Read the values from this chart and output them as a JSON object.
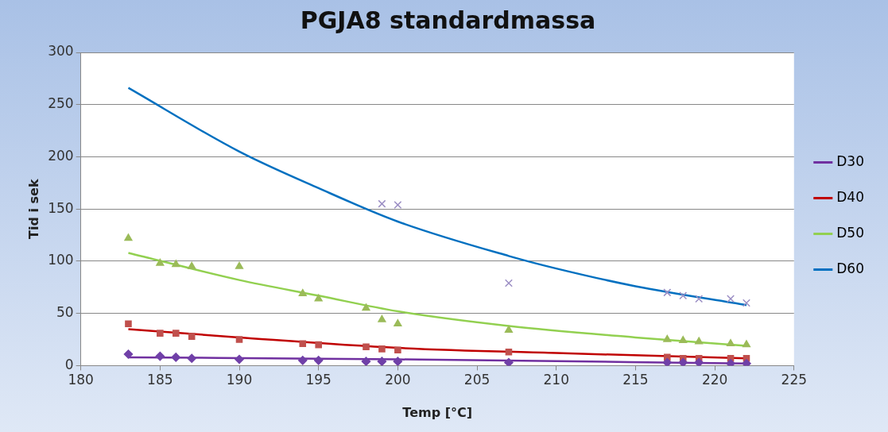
{
  "chart_data": {
    "type": "scatter",
    "title": "PGJA8 standardmassa",
    "xlabel": "Temp [°C]",
    "ylabel": "Tid i sek",
    "x": [
      183,
      185,
      186,
      187,
      190,
      194,
      195,
      198,
      199,
      200,
      207,
      217,
      218,
      219,
      221,
      222
    ],
    "xlim": [
      180,
      225
    ],
    "xticks": [
      180,
      185,
      190,
      195,
      200,
      205,
      210,
      215,
      220,
      225
    ],
    "ylim": [
      0,
      300
    ],
    "yticks": [
      0,
      50,
      100,
      150,
      200,
      250,
      300
    ],
    "grid": "y",
    "legend": "right",
    "series": [
      {
        "marker": "diamond",
        "color": "#7040a8",
        "values": [
          11,
          9,
          8,
          7,
          6,
          5,
          5,
          4,
          4,
          4,
          3,
          3,
          3,
          3,
          2,
          2
        ]
      },
      {
        "marker": "square",
        "color": "#c0504d",
        "values": [
          40,
          31,
          31,
          28,
          25,
          21,
          20,
          18,
          16,
          15,
          13,
          8,
          7,
          7,
          7,
          7
        ]
      },
      {
        "marker": "triangle",
        "color": "#9bbb59",
        "values": [
          122,
          98,
          97,
          95,
          95,
          69,
          64,
          55,
          44,
          40,
          34,
          25,
          24,
          23,
          21,
          20
        ]
      },
      {
        "marker": "cross",
        "color": "#9b8ec4",
        "values": [
          null,
          null,
          null,
          null,
          null,
          null,
          null,
          null,
          155,
          154,
          79,
          70,
          67,
          64,
          64,
          60
        ]
      },
      {
        "type": "line",
        "name": "D30",
        "marker": "none",
        "color": "#7030a0",
        "x": [
          183,
          200,
          222
        ],
        "values": [
          8,
          6,
          2
        ]
      },
      {
        "type": "line",
        "name": "D40",
        "marker": "none",
        "color": "#c00000",
        "x": [
          183,
          190,
          200,
          210,
          222
        ],
        "values": [
          35,
          27,
          17,
          12,
          7
        ]
      },
      {
        "type": "line",
        "name": "D50",
        "marker": "none",
        "color": "#92d050",
        "x": [
          183,
          190,
          195,
          200,
          207,
          215,
          222
        ],
        "values": [
          108,
          82,
          67,
          52,
          38,
          27,
          19
        ]
      },
      {
        "type": "line",
        "name": "D60",
        "marker": "none",
        "color": "#0070c0",
        "x": [
          183,
          190,
          195,
          200,
          207,
          210,
          215,
          222
        ],
        "values": [
          266,
          205,
          170,
          138,
          105,
          93,
          76,
          58
        ]
      }
    ]
  }
}
